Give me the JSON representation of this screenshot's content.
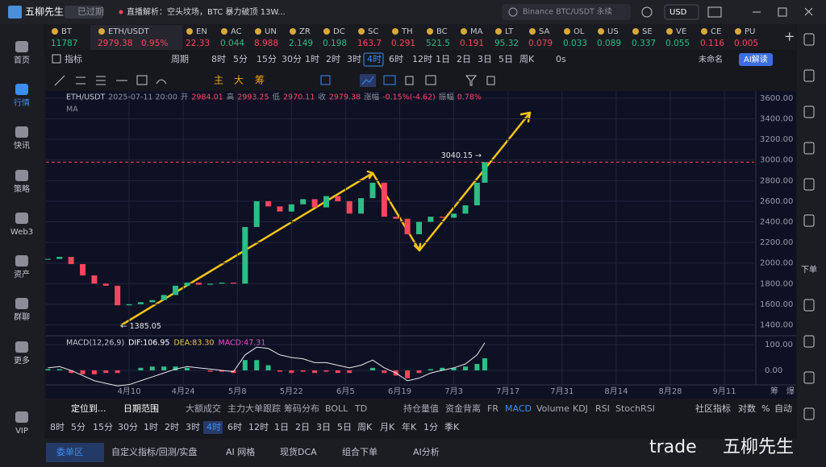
{
  "topbar": {
    "brand": "五柳先生",
    "badge": "已过期",
    "news": "直播解析：空头坟场，BTC 暴力破顶 13W...",
    "search": "Binance BTC/USDT 永续",
    "currency": "USD"
  },
  "sidebar": [
    "首页",
    "行情",
    "快讯",
    "策略",
    "Web3",
    "资产",
    "群聊",
    "更多",
    "VIP"
  ],
  "sidebar_selected": 1,
  "right_sidebar": {
    "order": "下单"
  },
  "tickers": [
    {
      "name": "BT",
      "value": "11787",
      "color": "#2ebd85"
    },
    {
      "name": "ETH/USDT",
      "value": "2979.38",
      "change": "0.95%",
      "color": "#f6465d"
    },
    {
      "name": "EN",
      "value": "22.33",
      "color": "#f6465d"
    },
    {
      "name": "AC",
      "value": "0.044",
      "color": "#2ebd85"
    },
    {
      "name": "UN",
      "value": "8.988",
      "color": "#f6465d"
    },
    {
      "name": "ZR",
      "value": "2.149",
      "color": "#2ebd85"
    },
    {
      "name": "DC",
      "value": "0.198",
      "color": "#2ebd85"
    },
    {
      "name": "SC",
      "value": "163.7",
      "color": "#f6465d"
    },
    {
      "name": "TH",
      "value": "0.291",
      "color": "#f6465d"
    },
    {
      "name": "BC",
      "value": "521.5",
      "color": "#2ebd85"
    },
    {
      "name": "MA",
      "value": "0.191",
      "color": "#f6465d"
    },
    {
      "name": "LT",
      "value": "95.32",
      "color": "#2ebd85"
    },
    {
      "name": "SA",
      "value": "0.079",
      "color": "#f6465d"
    },
    {
      "name": "OL",
      "value": "0.033",
      "color": "#2ebd85"
    },
    {
      "name": "US",
      "value": "0.089",
      "color": "#2ebd85"
    },
    {
      "name": "SE",
      "value": "0.337",
      "color": "#2ebd85"
    },
    {
      "name": "VE",
      "value": "0.055",
      "color": "#2ebd85"
    },
    {
      "name": "CE",
      "value": "0.116",
      "color": "#f6465d"
    },
    {
      "name": "PU",
      "value": "0.005",
      "color": "#f6465d"
    }
  ],
  "toolbar": {
    "indicators": "指标",
    "period": "周期",
    "periods": [
      "8时",
      "5分",
      "15分",
      "30分",
      "1时",
      "2时",
      "3时",
      "4时",
      "6时",
      "12时",
      "1日",
      "2日",
      "3日",
      "5日",
      "周K"
    ],
    "selected": 7,
    "timer": "0s",
    "layout": "未命名",
    "ai": "AI解读",
    "tools": [
      "主",
      "大",
      "筹"
    ]
  },
  "chart_data": {
    "type": "candlestick",
    "header": [
      "ETH/USDT",
      "2025-07-11 20:00",
      "开",
      "2984.01",
      "高",
      "2993.25",
      "低",
      "2970.11",
      "收",
      "2979.38",
      "涨幅",
      "-0.15%(-4.62)",
      "振幅",
      "0.78%"
    ],
    "ma_label": "MA",
    "x": [
      79,
      82,
      85,
      88,
      91,
      94,
      97,
      100,
      103,
      106,
      109,
      112,
      115,
      118,
      121,
      124,
      127,
      130,
      133,
      136,
      139,
      142,
      145,
      148,
      151,
      154,
      157,
      160,
      163,
      166,
      169,
      172,
      175,
      178,
      181,
      184,
      187,
      190,
      192
    ],
    "values": [
      2040,
      2060,
      1990,
      1880,
      1800,
      1780,
      1590,
      1600,
      1620,
      1640,
      1690,
      1780,
      1810,
      1790,
      1800,
      1810,
      1800,
      2350,
      2600,
      2550,
      2500,
      2570,
      2620,
      2540,
      2650,
      2600,
      2480,
      2630,
      2780,
      2450,
      2430,
      2280,
      2400,
      2450,
      2440,
      2480,
      2560,
      2780,
      2979.38
    ],
    "up_color": "#2ebd85",
    "down_color": "#f6465d",
    "xlim": [
      78.5,
      261.7
    ],
    "xticks": [
      {
        "value": 100,
        "label": "4月10"
      },
      {
        "value": 114,
        "label": "4月24"
      },
      {
        "value": 128,
        "label": "5月8"
      },
      {
        "value": 142,
        "label": "5月22"
      },
      {
        "value": 156,
        "label": "6月5"
      },
      {
        "value": 170,
        "label": "6月19"
      },
      {
        "value": 184,
        "label": "7月3"
      },
      {
        "value": 198,
        "label": "7月17"
      },
      {
        "value": 212,
        "label": "7月31"
      },
      {
        "value": 226,
        "label": "8月14"
      },
      {
        "value": 240,
        "label": "8月28"
      },
      {
        "value": 254,
        "label": "9月11"
      }
    ],
    "ylim": [
      1310,
      3670
    ],
    "yticks": [
      {
        "value": 3600,
        "label": "3600.00"
      },
      {
        "value": 3400,
        "label": "3400.00"
      },
      {
        "value": 3200,
        "label": "3200.00"
      },
      {
        "value": 3000,
        "label": "3000.00"
      },
      {
        "value": 2800,
        "label": "2800.00"
      },
      {
        "value": 2600,
        "label": "2600.00"
      },
      {
        "value": 2400,
        "label": "2400.00"
      },
      {
        "value": 2200,
        "label": "2200.00"
      },
      {
        "value": 2000,
        "label": "2000.00"
      },
      {
        "value": 1800,
        "label": "1800.00"
      },
      {
        "value": 1600,
        "label": "1600.00"
      },
      {
        "value": 1400,
        "label": "1400.00"
      }
    ],
    "grid": true,
    "annotations": [
      {
        "x": 192,
        "y": 3040.15,
        "label": "3040.15 →"
      },
      {
        "x": 97,
        "y": 1385.05,
        "label": "← 1385.05"
      }
    ],
    "axis_extras": [
      "筹",
      "爆"
    ],
    "macd": {
      "label": "MACD(12,26,9)",
      "dif_label": "DIF:106.95",
      "dea_label": "DEA:83.30",
      "macd_label": "MACD:47.31",
      "dif_color": "#e8e8e8",
      "dif": [
        10,
        15,
        0,
        -20,
        -40,
        -50,
        -60,
        -55,
        -40,
        -25,
        -10,
        5,
        15,
        10,
        5,
        0,
        -5,
        60,
        90,
        85,
        60,
        50,
        45,
        30,
        30,
        20,
        10,
        20,
        40,
        10,
        -10,
        -40,
        -30,
        -10,
        0,
        10,
        25,
        60,
        106.95
      ],
      "hist": [
        5,
        5,
        -10,
        -15,
        -15,
        -10,
        -10,
        0,
        10,
        15,
        15,
        15,
        10,
        0,
        -5,
        -5,
        -10,
        40,
        40,
        20,
        -5,
        -10,
        -5,
        -10,
        -5,
        -10,
        -10,
        0,
        10,
        -10,
        -20,
        -30,
        -10,
        5,
        10,
        10,
        15,
        25,
        47.31
      ],
      "ylim": [
        -56,
        131
      ],
      "yticks": [
        {
          "value": 100,
          "label": "100.00"
        },
        {
          "value": 0,
          "label": "0.00"
        }
      ]
    }
  },
  "indicator_bar": {
    "locate": "定位到...",
    "range": "日期范围",
    "items": [
      "大额成交",
      "主力大单跟踪",
      "筹码分布",
      "BOLL",
      "TD",
      "持仓量值",
      "资金背离",
      "FR",
      "MACD",
      "Volume",
      "KDJ",
      "RSI",
      "StochRSI"
    ],
    "active": 8,
    "community": "社区指标",
    "log": "对数",
    "percent": "%",
    "auto": "自动"
  },
  "period_bar": {
    "periods": [
      "8时",
      "5分",
      "15分",
      "30分",
      "1时",
      "2时",
      "3时",
      "4时",
      "6时",
      "12时",
      "1日",
      "2日",
      "3日",
      "5日",
      "周K",
      "月K",
      "年K",
      "1分",
      "季K"
    ],
    "selected": 7
  },
  "bottom_tabs": {
    "tabs": [
      "委单区",
      "自定义指标/回测/实盘",
      "AI 网格",
      "现货DCA",
      "组合下单",
      "AI分析"
    ],
    "selected": 0
  },
  "watermark": {
    "text": "trade",
    "author": "五柳先生"
  }
}
